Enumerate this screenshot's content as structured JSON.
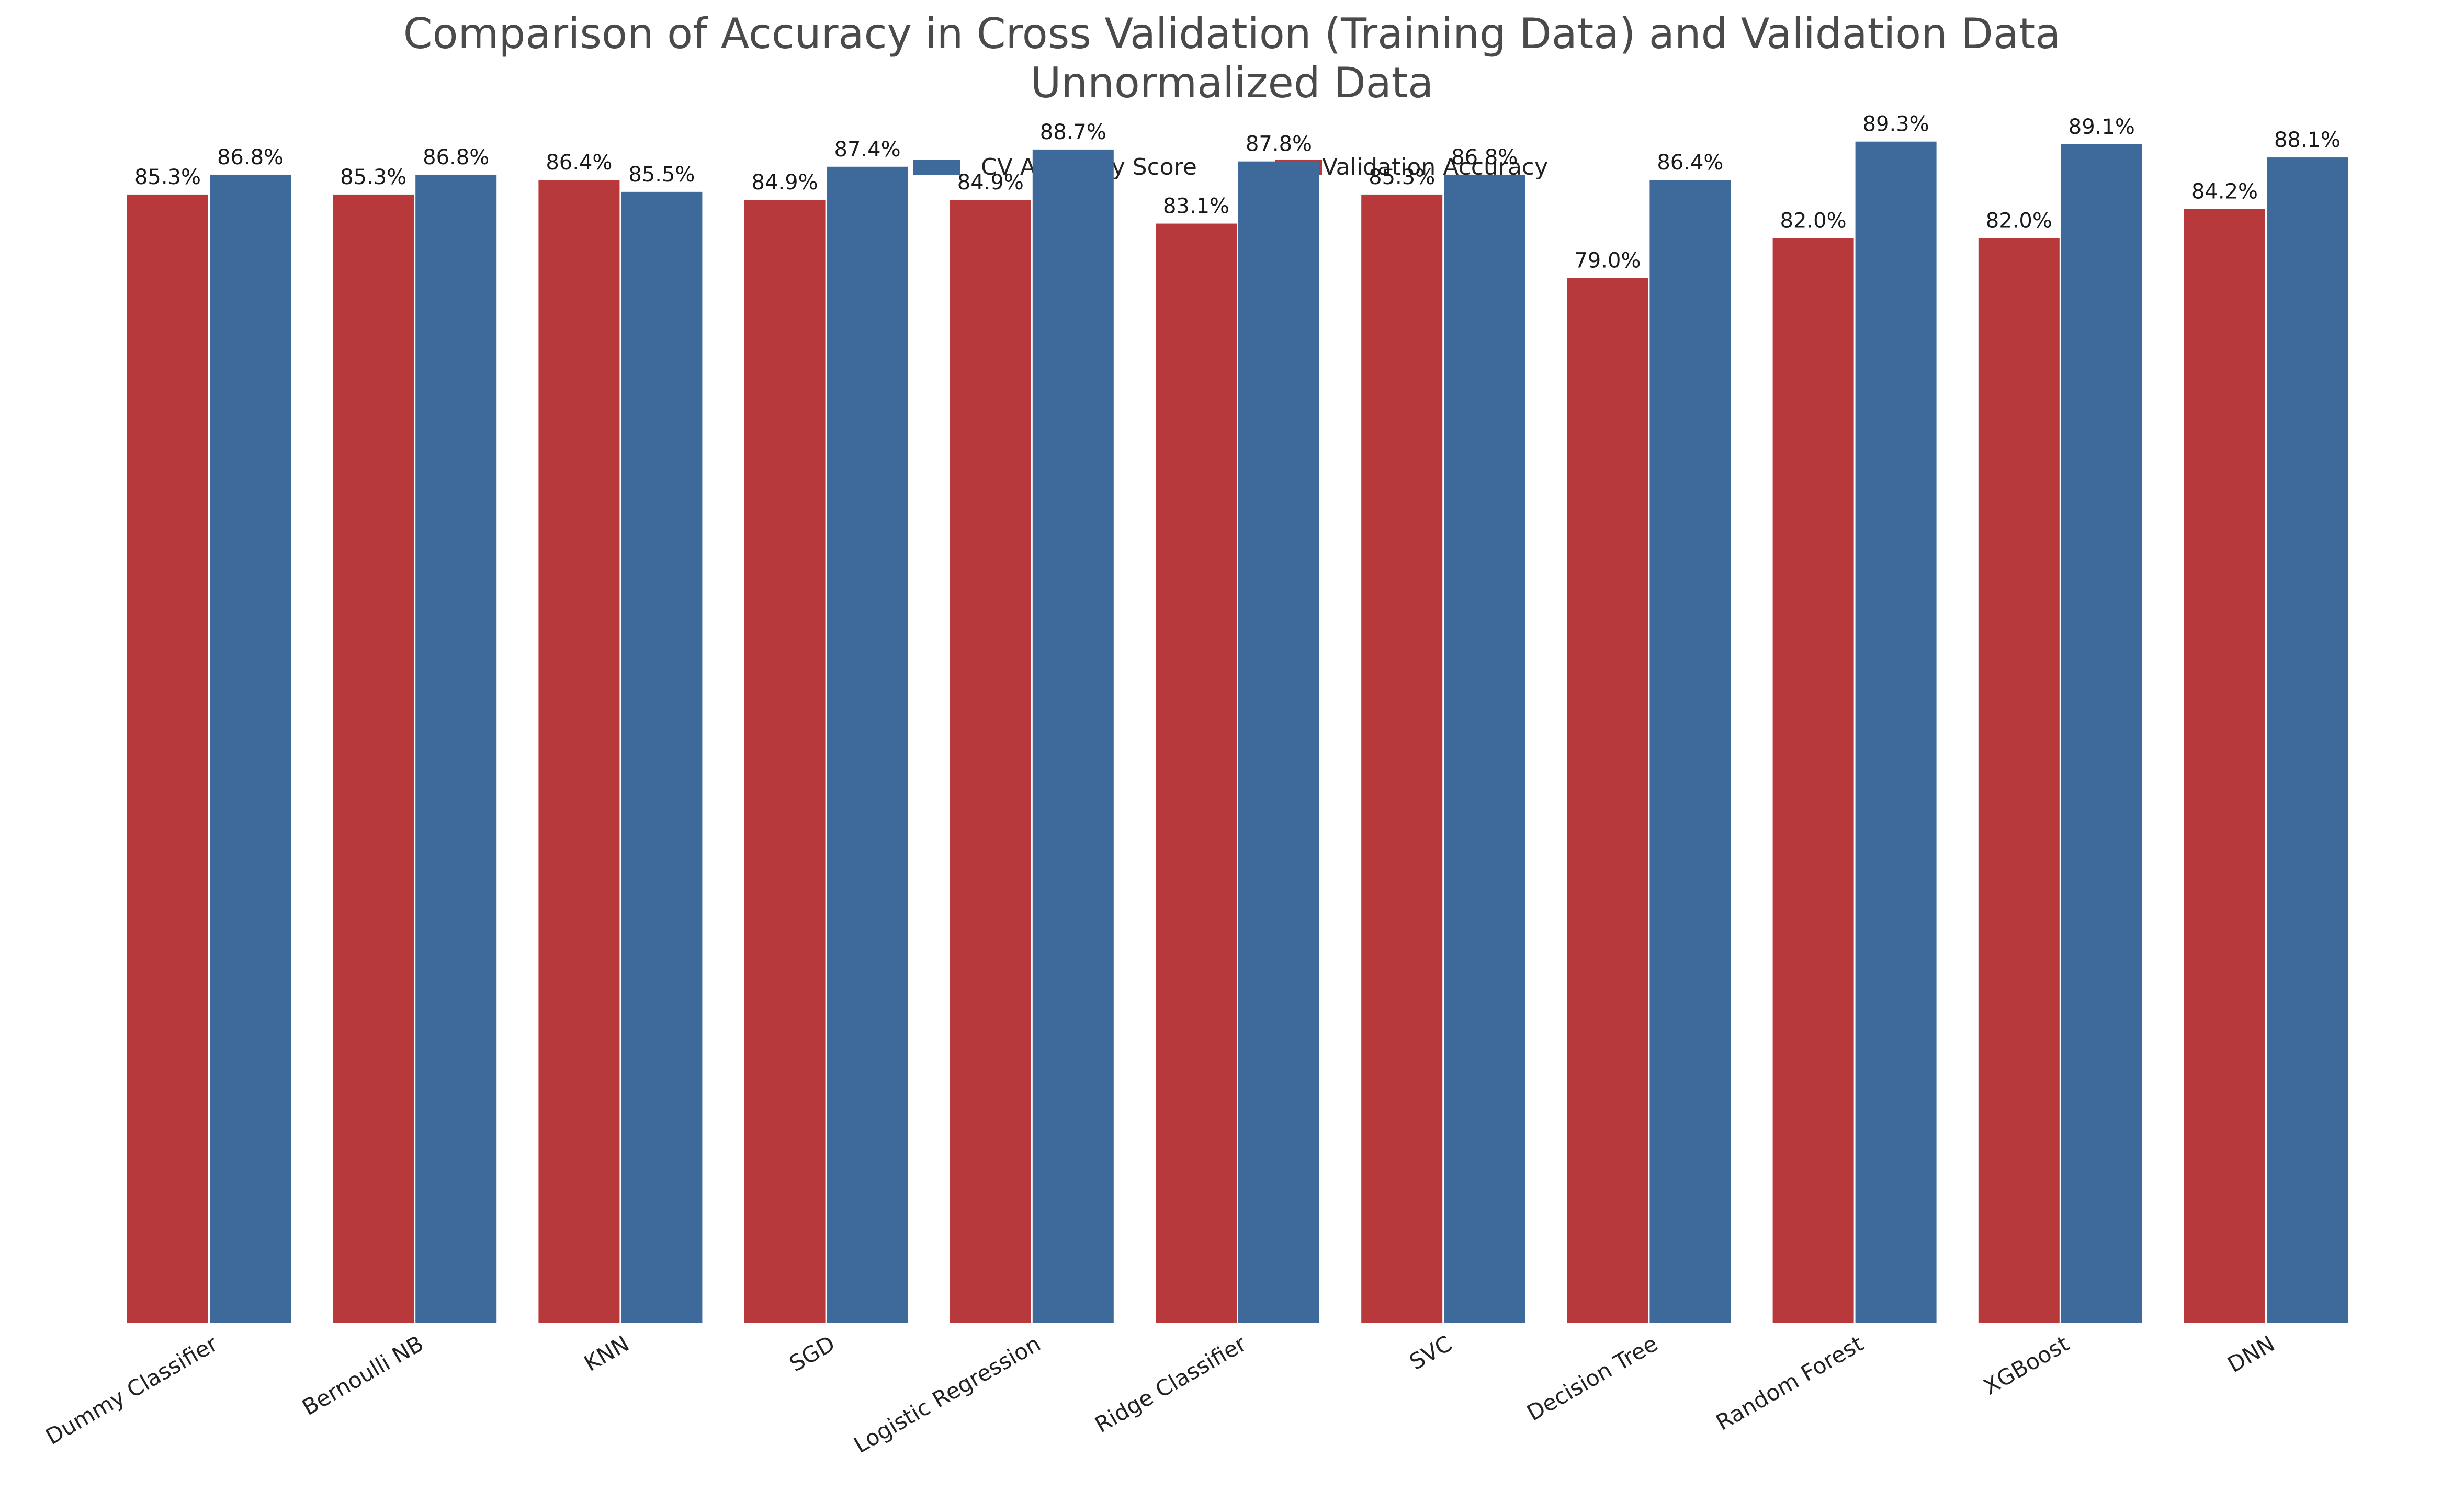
{
  "chart_data": {
    "type": "bar",
    "title": "Comparison of Accuracy in Cross Validation (Training Data) and Validation Data",
    "subtitle": "Unnormalized Data",
    "xlabel": "",
    "ylabel": "",
    "ylim": [
      0,
      100
    ],
    "grid": false,
    "legend_position": "top-center",
    "categories": [
      "Dummy Classifier",
      "Bernoulli NB",
      "KNN",
      "SGD",
      "Logistic Regression",
      "Ridge Classifier",
      "SVC",
      "Decision Tree",
      "Random Forest",
      "XGBoost",
      "DNN"
    ],
    "series": [
      {
        "name": "Validation Accuracy",
        "color": "#b8393b",
        "values": [
          85.3,
          85.3,
          86.4,
          84.9,
          84.9,
          83.1,
          85.3,
          79.0,
          82.0,
          82.0,
          84.2
        ],
        "labels": [
          "85.3%",
          "85.3%",
          "86.4%",
          "84.9%",
          "84.9%",
          "83.1%",
          "85.3%",
          "79.0%",
          "82.0%",
          "82.0%",
          "84.2%"
        ]
      },
      {
        "name": "CV Accuracy Score",
        "color": "#3e699b",
        "values": [
          86.8,
          86.8,
          85.5,
          87.4,
          88.7,
          87.8,
          86.8,
          86.4,
          89.3,
          89.1,
          88.1
        ],
        "labels": [
          "86.8%",
          "86.8%",
          "85.5%",
          "87.4%",
          "88.7%",
          "87.8%",
          "86.8%",
          "86.4%",
          "89.3%",
          "89.1%",
          "88.1%"
        ]
      }
    ],
    "legend": [
      {
        "name": "CV Accuracy Score",
        "color": "#3e699b"
      },
      {
        "name": "Validation Accuracy",
        "color": "#b8393b"
      }
    ]
  }
}
